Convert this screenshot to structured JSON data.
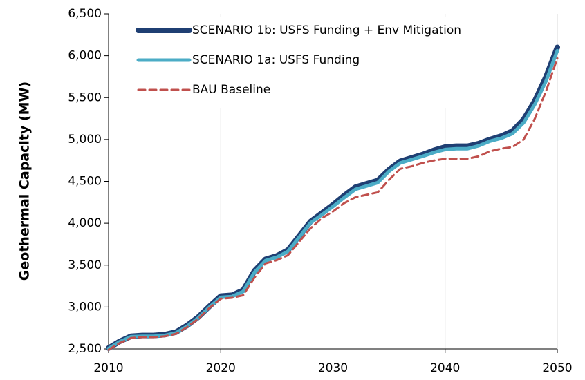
{
  "chart_data": {
    "type": "line",
    "ylabel": "Geothermal Capacity (MW)",
    "x": [
      2010,
      2011,
      2012,
      2013,
      2014,
      2015,
      2016,
      2017,
      2018,
      2019,
      2020,
      2021,
      2022,
      2023,
      2024,
      2025,
      2026,
      2027,
      2028,
      2029,
      2030,
      2031,
      2032,
      2033,
      2034,
      2035,
      2036,
      2037,
      2038,
      2039,
      2040,
      2041,
      2042,
      2043,
      2044,
      2045,
      2046,
      2047,
      2048,
      2049,
      2050
    ],
    "series": [
      {
        "name": "SCENARIO 1b: USFS Funding + Env Mitigation",
        "color": "#1f3f73",
        "style": "solid",
        "values": [
          2510,
          2590,
          2650,
          2660,
          2660,
          2670,
          2700,
          2780,
          2880,
          3010,
          3130,
          3140,
          3200,
          3430,
          3570,
          3610,
          3680,
          3850,
          4020,
          4120,
          4220,
          4330,
          4430,
          4470,
          4510,
          4640,
          4740,
          4780,
          4820,
          4870,
          4910,
          4920,
          4920,
          4950,
          5000,
          5040,
          5100,
          5240,
          5460,
          5750,
          6100
        ]
      },
      {
        "name": "SCENARIO 1a: USFS Funding",
        "color": "#4bacc6",
        "style": "solid",
        "values": [
          2505,
          2585,
          2645,
          2650,
          2650,
          2660,
          2690,
          2770,
          2870,
          3000,
          3115,
          3125,
          3185,
          3415,
          3555,
          3595,
          3665,
          3835,
          4005,
          4100,
          4200,
          4305,
          4405,
          4445,
          4485,
          4620,
          4720,
          4760,
          4800,
          4845,
          4880,
          4890,
          4890,
          4925,
          4980,
          5015,
          5070,
          5200,
          5420,
          5700,
          6060
        ]
      },
      {
        "name": "BAU Baseline",
        "color": "#c0504d",
        "style": "dashed",
        "values": [
          2490,
          2570,
          2630,
          2640,
          2640,
          2650,
          2680,
          2760,
          2860,
          2990,
          3100,
          3110,
          3140,
          3350,
          3520,
          3560,
          3620,
          3780,
          3940,
          4060,
          4140,
          4240,
          4310,
          4340,
          4370,
          4520,
          4650,
          4680,
          4720,
          4750,
          4770,
          4770,
          4770,
          4800,
          4860,
          4890,
          4910,
          5000,
          5250,
          5580,
          5970
        ]
      }
    ],
    "xlim": [
      2010,
      2050
    ],
    "xticks": [
      2010,
      2020,
      2030,
      2040,
      2050
    ],
    "ylim": [
      2500,
      6500
    ],
    "yticks": [
      {
        "value": 2500,
        "label": "2,500"
      },
      {
        "value": 3000,
        "label": "3,000"
      },
      {
        "value": 3500,
        "label": "3,500"
      },
      {
        "value": 4000,
        "label": "4,000"
      },
      {
        "value": 4500,
        "label": "4,500"
      },
      {
        "value": 5000,
        "label": "5,000"
      },
      {
        "value": 5500,
        "label": "5,500"
      },
      {
        "value": 6000,
        "label": "6,000"
      },
      {
        "value": 6500,
        "label": "6,500"
      }
    ],
    "grid": "x",
    "legend": "upper-left"
  }
}
